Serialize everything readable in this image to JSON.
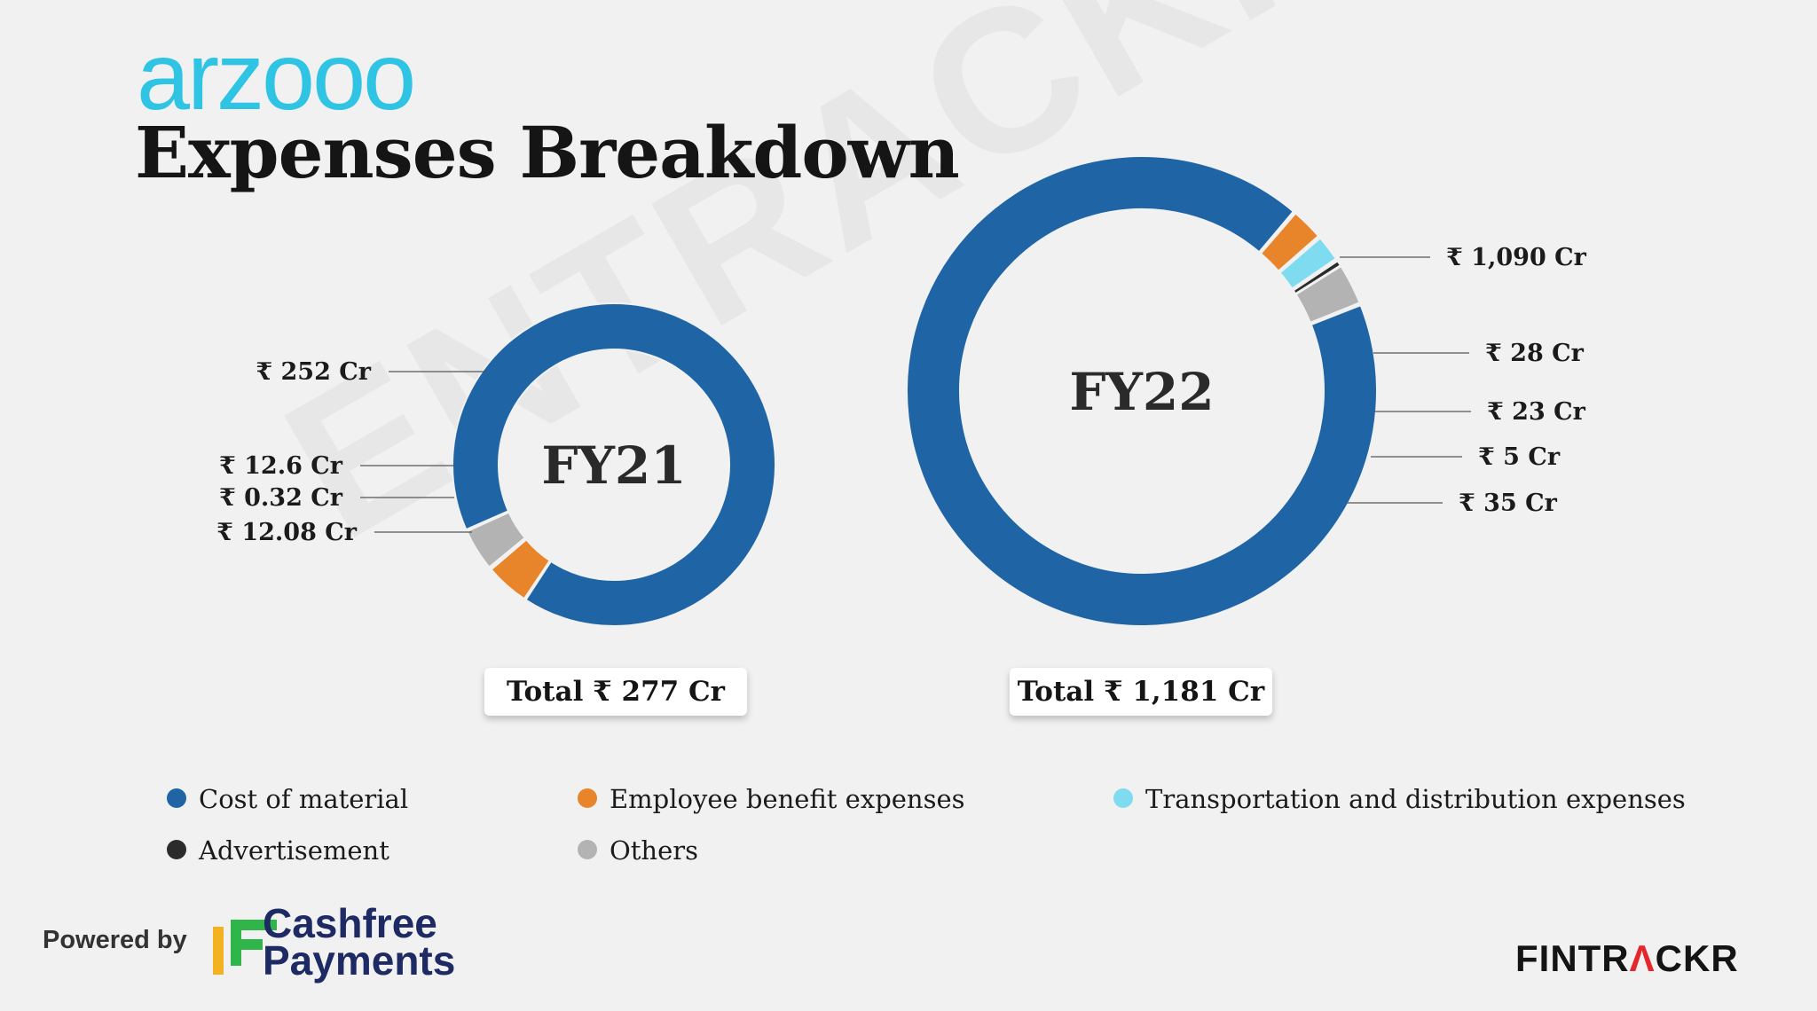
{
  "brand": {
    "logo_text": "arzooo",
    "logo_color": "#2fc4e4"
  },
  "header": {
    "title": "Expenses Breakdown"
  },
  "watermark_text": "ENTRACKR",
  "chart_data": [
    {
      "type": "pie",
      "subtype": "donut",
      "center_label": "FY21",
      "total_label": "Total ₹ 277 Cr",
      "slices": [
        {
          "name": "Cost of material",
          "value": 252,
          "label": "₹ 252 Cr",
          "color": "#1f65a6"
        },
        {
          "name": "Employee benefit expenses",
          "value": 12.6,
          "label": "₹ 12.6 Cr",
          "color": "#e8852a"
        },
        {
          "name": "Advertisement",
          "value": 0.32,
          "label": "₹ 0.32 Cr",
          "color": "#2b2b2b"
        },
        {
          "name": "Others",
          "value": 12.08,
          "label": "₹ 12.08 Cr",
          "color": "#b3b3b3"
        }
      ]
    },
    {
      "type": "pie",
      "subtype": "donut",
      "center_label": "FY22",
      "total_label": "Total ₹ 1,181 Cr",
      "slices": [
        {
          "name": "Cost of material",
          "value": 1090,
          "label": "₹ 1,090 Cr",
          "color": "#1f65a6"
        },
        {
          "name": "Employee benefit expenses",
          "value": 28,
          "label": "₹ 28 Cr",
          "color": "#e8852a"
        },
        {
          "name": "Transportation and distribution expenses",
          "value": 23,
          "label": "₹ 23 Cr",
          "color": "#7fdcf0"
        },
        {
          "name": "Advertisement",
          "value": 5,
          "label": "₹ 5 Cr",
          "color": "#2b2b2b"
        },
        {
          "name": "Others",
          "value": 35,
          "label": "₹ 35 Cr",
          "color": "#b3b3b3"
        }
      ]
    }
  ],
  "legend": [
    {
      "label": "Cost of material",
      "color": "#1f65a6"
    },
    {
      "label": "Employee benefit expenses",
      "color": "#e8852a"
    },
    {
      "label": "Transportation and distribution expenses",
      "color": "#7fdcf0"
    },
    {
      "label": "Advertisement",
      "color": "#2b2b2b"
    },
    {
      "label": "Others",
      "color": "#b3b3b3"
    }
  ],
  "footer": {
    "powered_by": "Powered by",
    "partner_line1": "Cashfree",
    "partner_line2": "Payments",
    "fintrackr_part1": "FINTR",
    "fintrackr_accent": "Λ",
    "fintrackr_part2": "CKR"
  }
}
